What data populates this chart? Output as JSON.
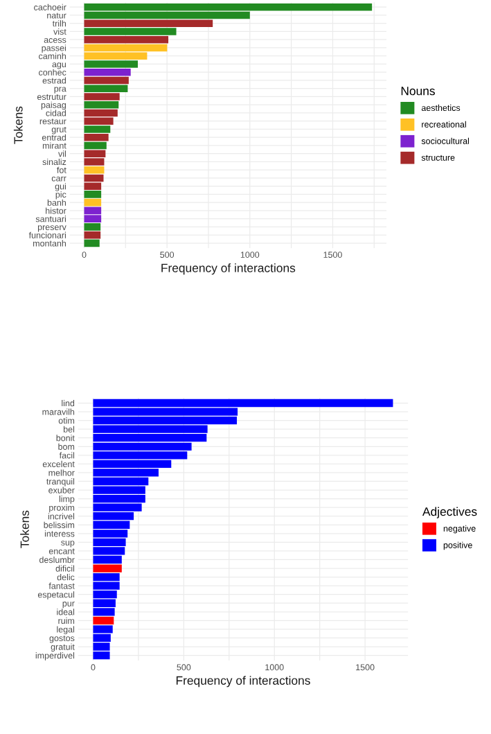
{
  "chart_data": [
    {
      "type": "bar",
      "orientation": "horizontal",
      "xlabel": "Frequency of interactions",
      "ylabel": "Tokens",
      "legend_title": "Nouns",
      "legend": "right",
      "grid": true,
      "categories": [
        "cachoeir",
        "natur",
        "trilh",
        "vist",
        "acess",
        "passei",
        "caminh",
        "agu",
        "conhec",
        "estrad",
        "pra",
        "estrutur",
        "paisag",
        "cidad",
        "restaur",
        "grut",
        "entrad",
        "mirant",
        "vil",
        "sinaliz",
        "fot",
        "carr",
        "gui",
        "pic",
        "banh",
        "histor",
        "santuari",
        "preserv",
        "funcionari",
        "montanh"
      ],
      "series": [
        {
          "name": "aesthetics",
          "color": "#228b22",
          "values": [
            1737,
            1000,
            null,
            556,
            null,
            null,
            null,
            324,
            null,
            null,
            263,
            null,
            208,
            null,
            null,
            158,
            null,
            135,
            null,
            null,
            null,
            null,
            null,
            103,
            null,
            null,
            null,
            99,
            null,
            93
          ]
        },
        {
          "name": "recreational",
          "color": "#ffc125",
          "values": [
            null,
            null,
            null,
            null,
            null,
            501,
            380,
            null,
            null,
            null,
            null,
            null,
            null,
            null,
            null,
            null,
            null,
            null,
            null,
            null,
            121,
            null,
            null,
            null,
            103,
            null,
            null,
            null,
            null,
            null
          ]
        },
        {
          "name": "sociocultural",
          "color": "#7d22cf",
          "values": [
            null,
            null,
            null,
            null,
            null,
            null,
            null,
            null,
            281,
            null,
            null,
            null,
            null,
            null,
            null,
            null,
            null,
            null,
            null,
            null,
            null,
            null,
            null,
            null,
            null,
            103,
            103,
            null,
            null,
            null
          ]
        },
        {
          "name": "structure",
          "color": "#a52a2a",
          "values": [
            null,
            null,
            776,
            null,
            508,
            null,
            null,
            null,
            null,
            269,
            null,
            214,
            null,
            202,
            176,
            null,
            147,
            null,
            129,
            121,
            null,
            117,
            103,
            null,
            null,
            null,
            null,
            null,
            99,
            null
          ]
        }
      ],
      "xlim": [
        -87,
        1824
      ],
      "xticks": [
        0,
        {
          "value": 250,
          "label": null
        },
        500,
        {
          "value": 750,
          "label": null
        },
        1000,
        {
          "value": 1250,
          "label": null
        },
        1500,
        {
          "value": 1750,
          "label": null
        }
      ]
    },
    {
      "type": "bar",
      "orientation": "horizontal",
      "xlabel": "Frequency of interactions",
      "ylabel": "Tokens",
      "legend_title": "Adjectives",
      "legend": "right",
      "grid": true,
      "categories": [
        "lind",
        "maravilh",
        "otim",
        "bel",
        "bonit",
        "bom",
        "facil",
        "excelent",
        "melhor",
        "tranquil",
        "exuber",
        "limp",
        "proxim",
        "incrivel",
        "belissim",
        "interess",
        "sup",
        "encant",
        "deslumbr",
        "dificil",
        "delic",
        "fantast",
        "espetacul",
        "pur",
        "ideal",
        "ruim",
        "legal",
        "gostos",
        "gratuit",
        "imperdivel"
      ],
      "series": [
        {
          "name": "negative",
          "color": "#ff0000",
          "values": [
            null,
            null,
            null,
            null,
            null,
            null,
            null,
            null,
            null,
            null,
            null,
            null,
            null,
            null,
            null,
            null,
            null,
            null,
            null,
            158,
            null,
            null,
            null,
            null,
            null,
            114,
            null,
            null,
            null,
            null
          ]
        },
        {
          "name": "positive",
          "color": "#0000ff",
          "values": [
            1654,
            797,
            793,
            631,
            626,
            543,
            519,
            431,
            361,
            305,
            288,
            288,
            268,
            224,
            202,
            190,
            180,
            175,
            158,
            null,
            146,
            146,
            131,
            124,
            119,
            null,
            108,
            97,
            92,
            92
          ]
        }
      ],
      "xlim": [
        -83,
        1737
      ],
      "xticks": [
        0,
        {
          "value": 250,
          "label": null
        },
        500,
        {
          "value": 750,
          "label": null
        },
        1000,
        {
          "value": 1250,
          "label": null
        },
        1500
      ]
    }
  ]
}
